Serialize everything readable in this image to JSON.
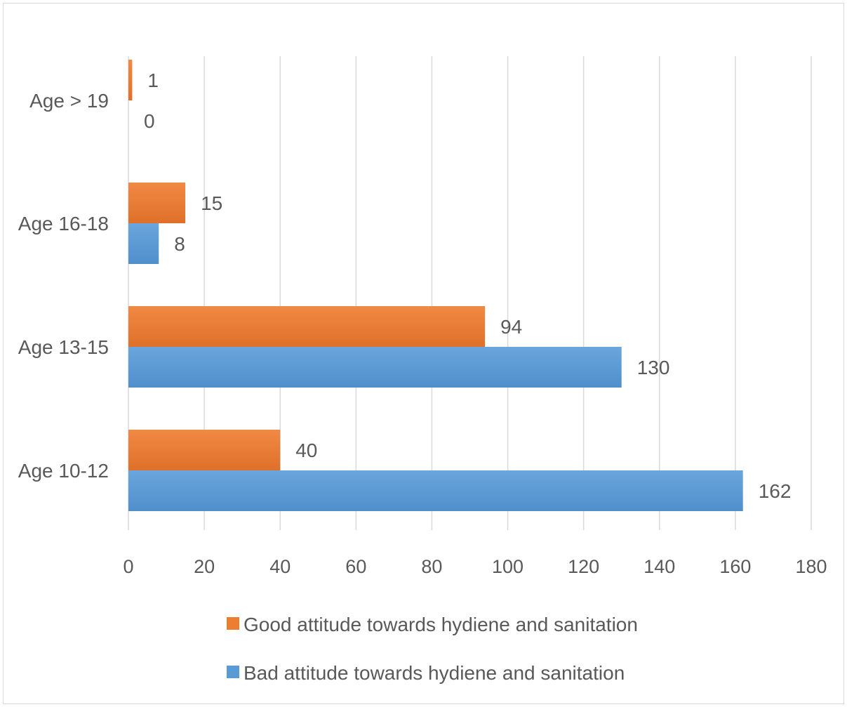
{
  "chart_data": {
    "type": "bar",
    "orientation": "horizontal",
    "categories": [
      "Age 10-12",
      "Age 13-15",
      "Age 16-18",
      "Age > 19"
    ],
    "series": [
      {
        "name": "Good attitude towards hydiene and sanitation",
        "values": [
          40,
          94,
          15,
          1
        ],
        "color": "#ed7d31"
      },
      {
        "name": "Bad attitude towards hydiene and sanitation",
        "values": [
          162,
          130,
          8,
          0
        ],
        "color": "#5b9bd5"
      }
    ],
    "xlim": [
      0,
      180
    ],
    "xticks": [
      0,
      20,
      40,
      60,
      80,
      100,
      120,
      140,
      160,
      180
    ],
    "grid": true,
    "data_labels": true,
    "legend_position": "bottom"
  }
}
